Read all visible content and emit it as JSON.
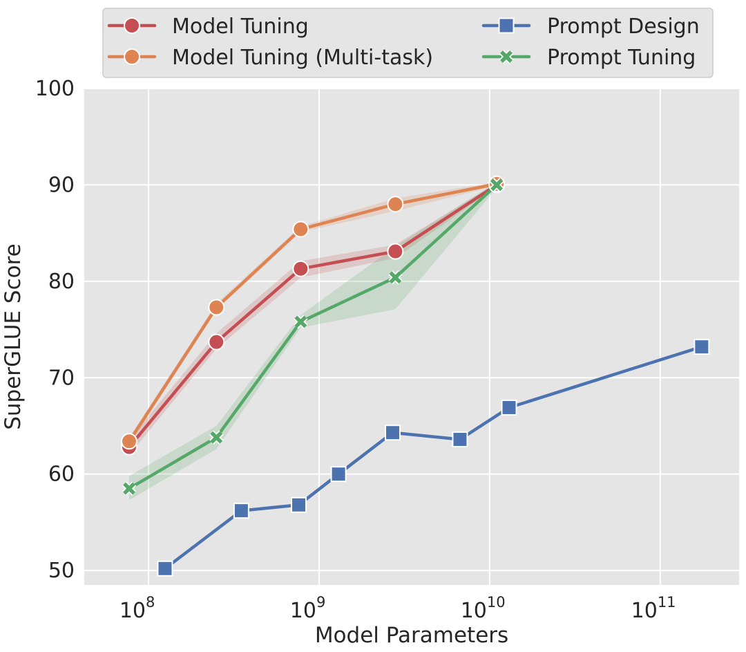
{
  "chart_data": {
    "type": "line",
    "xlabel": "Model Parameters",
    "ylabel": "SuperGLUE Score",
    "xscale": "log",
    "xlim": [
      42000000,
      290000000000
    ],
    "ylim": [
      48.5,
      100
    ],
    "grid": true,
    "legend_placement": "top",
    "y_ticks": [
      {
        "value": 50,
        "label": "50"
      },
      {
        "value": 60,
        "label": "60"
      },
      {
        "value": 70,
        "label": "70"
      },
      {
        "value": 80,
        "label": "80"
      },
      {
        "value": 90,
        "label": "90"
      },
      {
        "value": 100,
        "label": "100"
      }
    ],
    "x_ticks": [
      {
        "value": 100000000,
        "base": "10",
        "exp": "8"
      },
      {
        "value": 1000000000,
        "base": "10",
        "exp": "9"
      },
      {
        "value": 10000000000,
        "base": "10",
        "exp": "10"
      },
      {
        "value": 100000000000,
        "base": "10",
        "exp": "11"
      }
    ],
    "series": [
      {
        "name": "Model Tuning",
        "color": "#c44e52",
        "marker": "circle",
        "x": [
          77000000,
          250000000,
          780000000,
          2800000000,
          11000000000
        ],
        "y": [
          62.8,
          73.7,
          81.3,
          83.1,
          90.0
        ],
        "band": [
          [
            62.0,
            63.6
          ],
          [
            73.0,
            74.6
          ],
          [
            80.4,
            82.1
          ],
          [
            82.4,
            83.8
          ],
          [
            89.8,
            90.2
          ]
        ]
      },
      {
        "name": "Model Tuning (Multi-task)",
        "color": "#dd8452",
        "marker": "circle",
        "x": [
          77000000,
          250000000,
          780000000,
          2800000000,
          11000000000
        ],
        "y": [
          63.4,
          77.3,
          85.4,
          88.0,
          90.1
        ],
        "band": [
          [
            63.0,
            63.8
          ],
          [
            77.0,
            77.7
          ],
          [
            85.1,
            85.7
          ],
          [
            87.3,
            88.6
          ],
          [
            89.9,
            90.3
          ]
        ]
      },
      {
        "name": "Prompt Design",
        "color": "#4c72b0",
        "marker": "square",
        "x": [
          125000000,
          350000000,
          760000000,
          1300000000,
          2700000000,
          6700000000,
          13000000000,
          175000000000
        ],
        "y": [
          50.2,
          56.2,
          56.8,
          60.0,
          64.3,
          63.6,
          66.9,
          73.2
        ]
      },
      {
        "name": "Prompt Tuning",
        "color": "#55a868",
        "marker": "x",
        "x": [
          77000000,
          250000000,
          780000000,
          2800000000,
          11000000000
        ],
        "y": [
          58.5,
          63.8,
          75.8,
          80.4,
          90.0
        ],
        "band": [
          [
            57.3,
            59.8
          ],
          [
            62.6,
            65.0
          ],
          [
            75.2,
            76.5
          ],
          [
            77.1,
            83.6
          ],
          [
            89.7,
            90.3
          ]
        ]
      }
    ]
  }
}
